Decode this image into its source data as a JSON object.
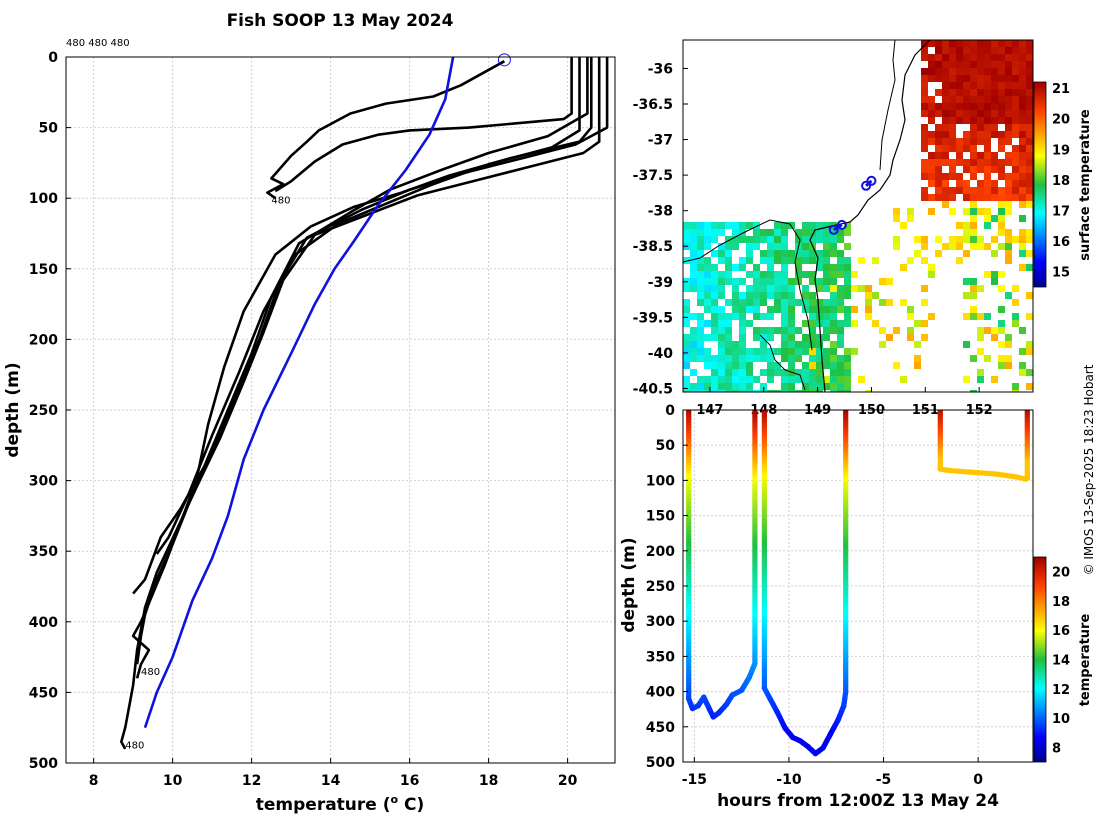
{
  "page": {
    "title": "Fish SOOP 13 May 2024",
    "top_left_labels": "480 480 480",
    "credit": "© IMOS 13-Sep-2025 18:23 Hobart"
  },
  "colors": {
    "profile": "#000000",
    "climatology": "#1010e0",
    "grid": "#d0d0d0",
    "land": "#ffffff"
  },
  "chart_data": [
    {
      "id": "profiles",
      "type": "line",
      "title": "Fish SOOP 13 May 2024",
      "xlabel": "temperature (",
      "xlabel_unit": "o",
      "xlabel_tail": " C)",
      "ylabel": "depth (m)",
      "xlim": [
        7.3,
        21.2
      ],
      "ylim": [
        0,
        500
      ],
      "xticks": [
        "8",
        "10",
        "12",
        "14",
        "16",
        "18",
        "20"
      ],
      "yticks": [
        "0",
        "50",
        "100",
        "150",
        "200",
        "250",
        "300",
        "350",
        "400",
        "450",
        "500"
      ],
      "marker_label": "480",
      "drop_labels": [
        {
          "text": "480",
          "t": 12.5,
          "d": 101
        },
        {
          "text": "480",
          "t": 9.2,
          "d": 435
        },
        {
          "text": "480",
          "t": 8.8,
          "d": 487
        }
      ],
      "start_marker": {
        "t": 18.4,
        "d": 2
      },
      "series": [
        {
          "name": "cast1",
          "t": [
            18.4,
            17.3,
            16.6,
            15.4,
            14.5,
            13.7,
            13.4,
            13.0,
            12.5,
            12.8,
            12.4,
            12.6
          ],
          "d": [
            3,
            20,
            28,
            33,
            40,
            52,
            60,
            70,
            86,
            90,
            96,
            100
          ]
        },
        {
          "name": "cast2",
          "t": [
            20.1,
            20.1,
            19.9,
            17.5,
            16.0,
            15.2,
            14.3,
            13.6,
            13.0,
            12.6
          ],
          "d": [
            0,
            40,
            44,
            50,
            52,
            55,
            62,
            74,
            88,
            95
          ]
        },
        {
          "name": "cast3",
          "t": [
            20.6,
            20.6,
            20.3,
            18.5,
            17.0,
            15.8,
            14.6,
            13.5,
            12.6,
            11.8,
            11.3,
            10.9,
            10.6,
            10.2,
            9.8,
            9.5,
            9.2,
            9.0,
            9.2,
            9.4,
            9.2,
            9.1
          ],
          "d": [
            0,
            50,
            60,
            72,
            84,
            96,
            106,
            120,
            140,
            180,
            220,
            260,
            300,
            330,
            360,
            380,
            400,
            410,
            415,
            420,
            430,
            440
          ]
        },
        {
          "name": "cast4",
          "t": [
            21.0,
            21.0,
            20.2,
            18.8,
            17.4,
            16.0,
            14.8,
            13.4,
            12.7,
            12.2,
            11.6,
            11.0,
            10.5,
            10.0,
            9.6,
            9.3,
            9.2,
            9.1
          ],
          "d": [
            0,
            50,
            62,
            72,
            82,
            94,
            108,
            128,
            160,
            200,
            240,
            280,
            310,
            345,
            370,
            395,
            410,
            430
          ]
        },
        {
          "name": "cast5",
          "t": [
            20.8,
            20.8,
            20.4,
            19.0,
            17.6,
            16.2,
            14.9,
            13.6,
            12.8,
            12.3,
            11.8,
            11.2,
            10.6,
            10.1,
            9.6,
            9.3,
            9.1,
            9.0,
            8.9,
            8.8,
            8.7,
            8.8
          ],
          "d": [
            0,
            60,
            68,
            78,
            88,
            98,
            112,
            126,
            158,
            195,
            230,
            270,
            305,
            335,
            365,
            390,
            420,
            445,
            460,
            475,
            485,
            490
          ]
        },
        {
          "name": "cast6",
          "t": [
            20.5,
            20.5,
            19.5,
            18.0,
            16.8,
            15.5,
            14.5,
            13.2,
            12.5,
            12.0,
            11.4,
            10.8,
            10.2,
            9.7,
            9.5,
            9.3,
            9.0
          ],
          "d": [
            0,
            40,
            56,
            68,
            80,
            94,
            110,
            132,
            170,
            210,
            250,
            290,
            320,
            340,
            355,
            370,
            380
          ]
        },
        {
          "name": "cast7",
          "t": [
            20.3,
            20.3,
            19.6,
            18.0,
            16.6,
            15.4,
            14.2,
            13.1,
            12.3,
            11.7,
            11.0,
            10.4,
            9.9,
            9.6
          ],
          "d": [
            0,
            52,
            64,
            76,
            90,
            104,
            118,
            140,
            180,
            222,
            268,
            310,
            340,
            352
          ]
        },
        {
          "name": "climatology",
          "t": [
            17.1,
            16.9,
            16.5,
            15.9,
            15.2,
            14.6,
            14.1,
            13.6,
            13.0,
            12.3,
            11.8,
            11.4,
            11.0,
            10.5,
            10.0,
            9.6,
            9.3
          ],
          "d": [
            0,
            30,
            55,
            80,
            105,
            130,
            150,
            175,
            210,
            250,
            285,
            325,
            355,
            385,
            425,
            450,
            475
          ]
        }
      ]
    },
    {
      "id": "map",
      "type": "heatmap",
      "xlim": [
        146.5,
        153.0
      ],
      "ylim": [
        -40.55,
        -35.6
      ],
      "xticks": [
        "147",
        "148",
        "149",
        "150",
        "151",
        "152"
      ],
      "yticks": [
        "-36",
        "-36.5",
        "-37",
        "-37.5",
        "-38",
        "-38.5",
        "-39",
        "-39.5",
        "-40",
        "-40.5"
      ],
      "colorbar_label": "surface temperature",
      "colorbar_ticks": [
        "15",
        "16",
        "17",
        "18",
        "19",
        "20",
        "21"
      ],
      "clim": [
        14.5,
        21.2
      ],
      "tracks": [
        {
          "lon": [
            149.9,
            150.0
          ],
          "lat": [
            -37.65,
            -37.58
          ]
        },
        {
          "lon": [
            149.3,
            149.45
          ],
          "lat": [
            -38.27,
            -38.2
          ]
        }
      ]
    },
    {
      "id": "timeseries",
      "type": "scatter",
      "xlabel": "hours from 12:00Z 13 May 24",
      "ylabel": "depth (m)",
      "xlim": [
        -15.6,
        2.9
      ],
      "ylim": [
        0,
        500
      ],
      "xticks": [
        "-15",
        "-10",
        "-5",
        "0"
      ],
      "yticks": [
        "0",
        "50",
        "100",
        "150",
        "200",
        "250",
        "300",
        "350",
        "400",
        "450",
        "500"
      ],
      "colorbar_label": "temperature",
      "colorbar_ticks": [
        "8",
        "10",
        "12",
        "14",
        "16",
        "18",
        "20"
      ],
      "clim": [
        7.0,
        21.0
      ],
      "casts": [
        {
          "h": [
            -15.3,
            -15.3,
            -15.1,
            -14.8,
            -14.5,
            -14.2,
            -14.0,
            -13.7,
            -13.3,
            -13.0,
            -12.5,
            -12.1,
            -11.8,
            -11.8
          ],
          "d": [
            0,
            410,
            424,
            420,
            408,
            425,
            436,
            430,
            418,
            405,
            398,
            380,
            360,
            0
          ]
        },
        {
          "h": [
            -11.3,
            -11.3,
            -11.0,
            -10.6,
            -10.2,
            -9.8,
            -9.4,
            -9.0,
            -8.6,
            -8.2,
            -7.8,
            -7.4,
            -7.1,
            -7.0,
            -7.0
          ],
          "d": [
            0,
            395,
            410,
            430,
            452,
            465,
            470,
            478,
            488,
            480,
            460,
            440,
            420,
            400,
            0
          ]
        },
        {
          "h": [
            -2.0,
            -2.0,
            -1.5,
            -1.0,
            -0.5,
            0.0,
            0.5,
            1.0,
            1.5,
            2.0,
            2.5,
            2.6,
            2.6
          ],
          "d": [
            0,
            84,
            86,
            87,
            88,
            89,
            90,
            91,
            93,
            95,
            98,
            97,
            0
          ]
        }
      ]
    }
  ]
}
